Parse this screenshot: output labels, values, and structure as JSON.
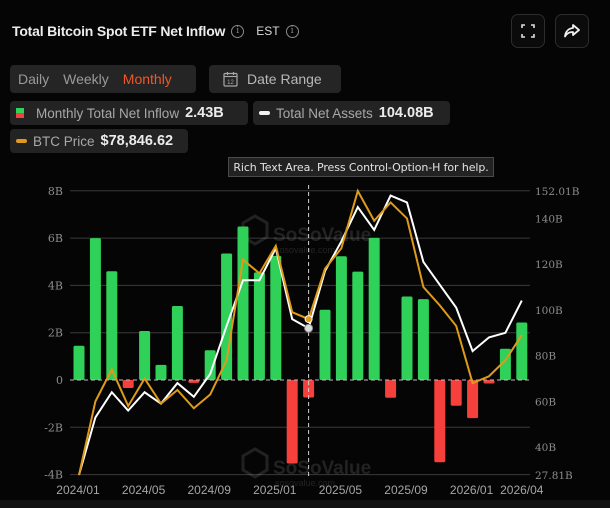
{
  "header": {
    "title": "Total Bitcoin Spot ETF Net Inflow",
    "timezone": "EST",
    "fullscreen_icon": "fullscreen-icon",
    "share_icon": "share-icon"
  },
  "controls": {
    "periods": [
      {
        "label": "Daily",
        "active": false
      },
      {
        "label": "Weekly",
        "active": false
      },
      {
        "label": "Monthly",
        "active": true
      }
    ],
    "date_range_label": "Date Range",
    "calendar_icon_day": "12"
  },
  "legend": {
    "inflow_label": "Monthly Total Net Inflow",
    "inflow_value": "2.43B",
    "assets_label": "Total Net Assets",
    "assets_value": "104.08B",
    "price_label": "BTC Price",
    "price_value": "$78,846.62"
  },
  "tooltip": {
    "text": "Rich Text Area. Press Control-Option-H for help."
  },
  "watermark": {
    "brand": "SoSoValue",
    "url": "sosovalue.com"
  },
  "colors": {
    "positive": "#2fd158",
    "negative": "#f5403c",
    "assets_line": "#ffffff",
    "price_line": "#e09a1a",
    "accent": "#f0572c"
  },
  "chart_data": {
    "type": "bar",
    "title": "Total Bitcoin Spot ETF Net Inflow",
    "categories": [
      "2024/01",
      "2024/02",
      "2024/03",
      "2024/04",
      "2024/05",
      "2024/06",
      "2024/07",
      "2024/08",
      "2024/09",
      "2024/10",
      "2024/11",
      "2024/12",
      "2025/01",
      "2025/02",
      "2025/03",
      "2025/04",
      "2025/05",
      "2025/06",
      "2025/07",
      "2025/08",
      "2025/09",
      "2025/10",
      "2025/11",
      "2025/12",
      "2026/01",
      "2026/02",
      "2026/03",
      "2026/04"
    ],
    "x_tick_labels": [
      "2024/01",
      "2024/05",
      "2024/09",
      "2025/01",
      "2025/05",
      "2025/09",
      "2026/01",
      "2026/04"
    ],
    "series": [
      {
        "name": "Monthly Total Net Inflow",
        "type": "bar",
        "axis": "left",
        "unit": "B",
        "values": [
          1.45,
          6.0,
          4.6,
          -0.34,
          2.07,
          0.64,
          3.13,
          -0.12,
          1.26,
          5.35,
          6.49,
          4.55,
          5.25,
          -3.53,
          -0.74,
          2.97,
          5.23,
          4.58,
          6.01,
          -0.75,
          3.53,
          3.42,
          -3.48,
          -1.09,
          -1.61,
          -0.15,
          1.32,
          2.43
        ]
      },
      {
        "name": "Total Net Assets",
        "type": "line",
        "axis": "right",
        "unit": "B",
        "values": [
          27.8,
          53,
          64,
          56,
          64,
          59,
          68,
          62,
          72,
          93,
          113,
          113,
          127,
          96,
          92,
          117,
          130,
          145,
          135,
          150,
          147,
          121,
          111,
          101,
          82,
          88,
          90,
          104.08
        ]
      },
      {
        "name": "BTC Price",
        "type": "line",
        "axis": "right_scaled",
        "values": [
          27.8,
          60,
          74,
          58,
          70,
          59,
          65,
          57,
          63,
          78,
          122,
          116,
          128,
          99,
          96,
          118,
          127,
          152,
          139,
          147,
          140,
          110,
          102,
          93,
          68,
          71,
          78,
          89
        ]
      }
    ],
    "ylabel_left_ticks": [
      "8B",
      "6B",
      "4B",
      "2B",
      "0",
      "-2B",
      "-4B"
    ],
    "ylim_left": [
      -4,
      8
    ],
    "ylabel_right_ticks": [
      "152.01B",
      "140B",
      "120B",
      "100B",
      "80B",
      "60B",
      "40B",
      "27.81B"
    ],
    "ylim_right": [
      27.81,
      152.01
    ],
    "grid": true,
    "crosshair_at": "2025/03",
    "legend_position": "top"
  }
}
